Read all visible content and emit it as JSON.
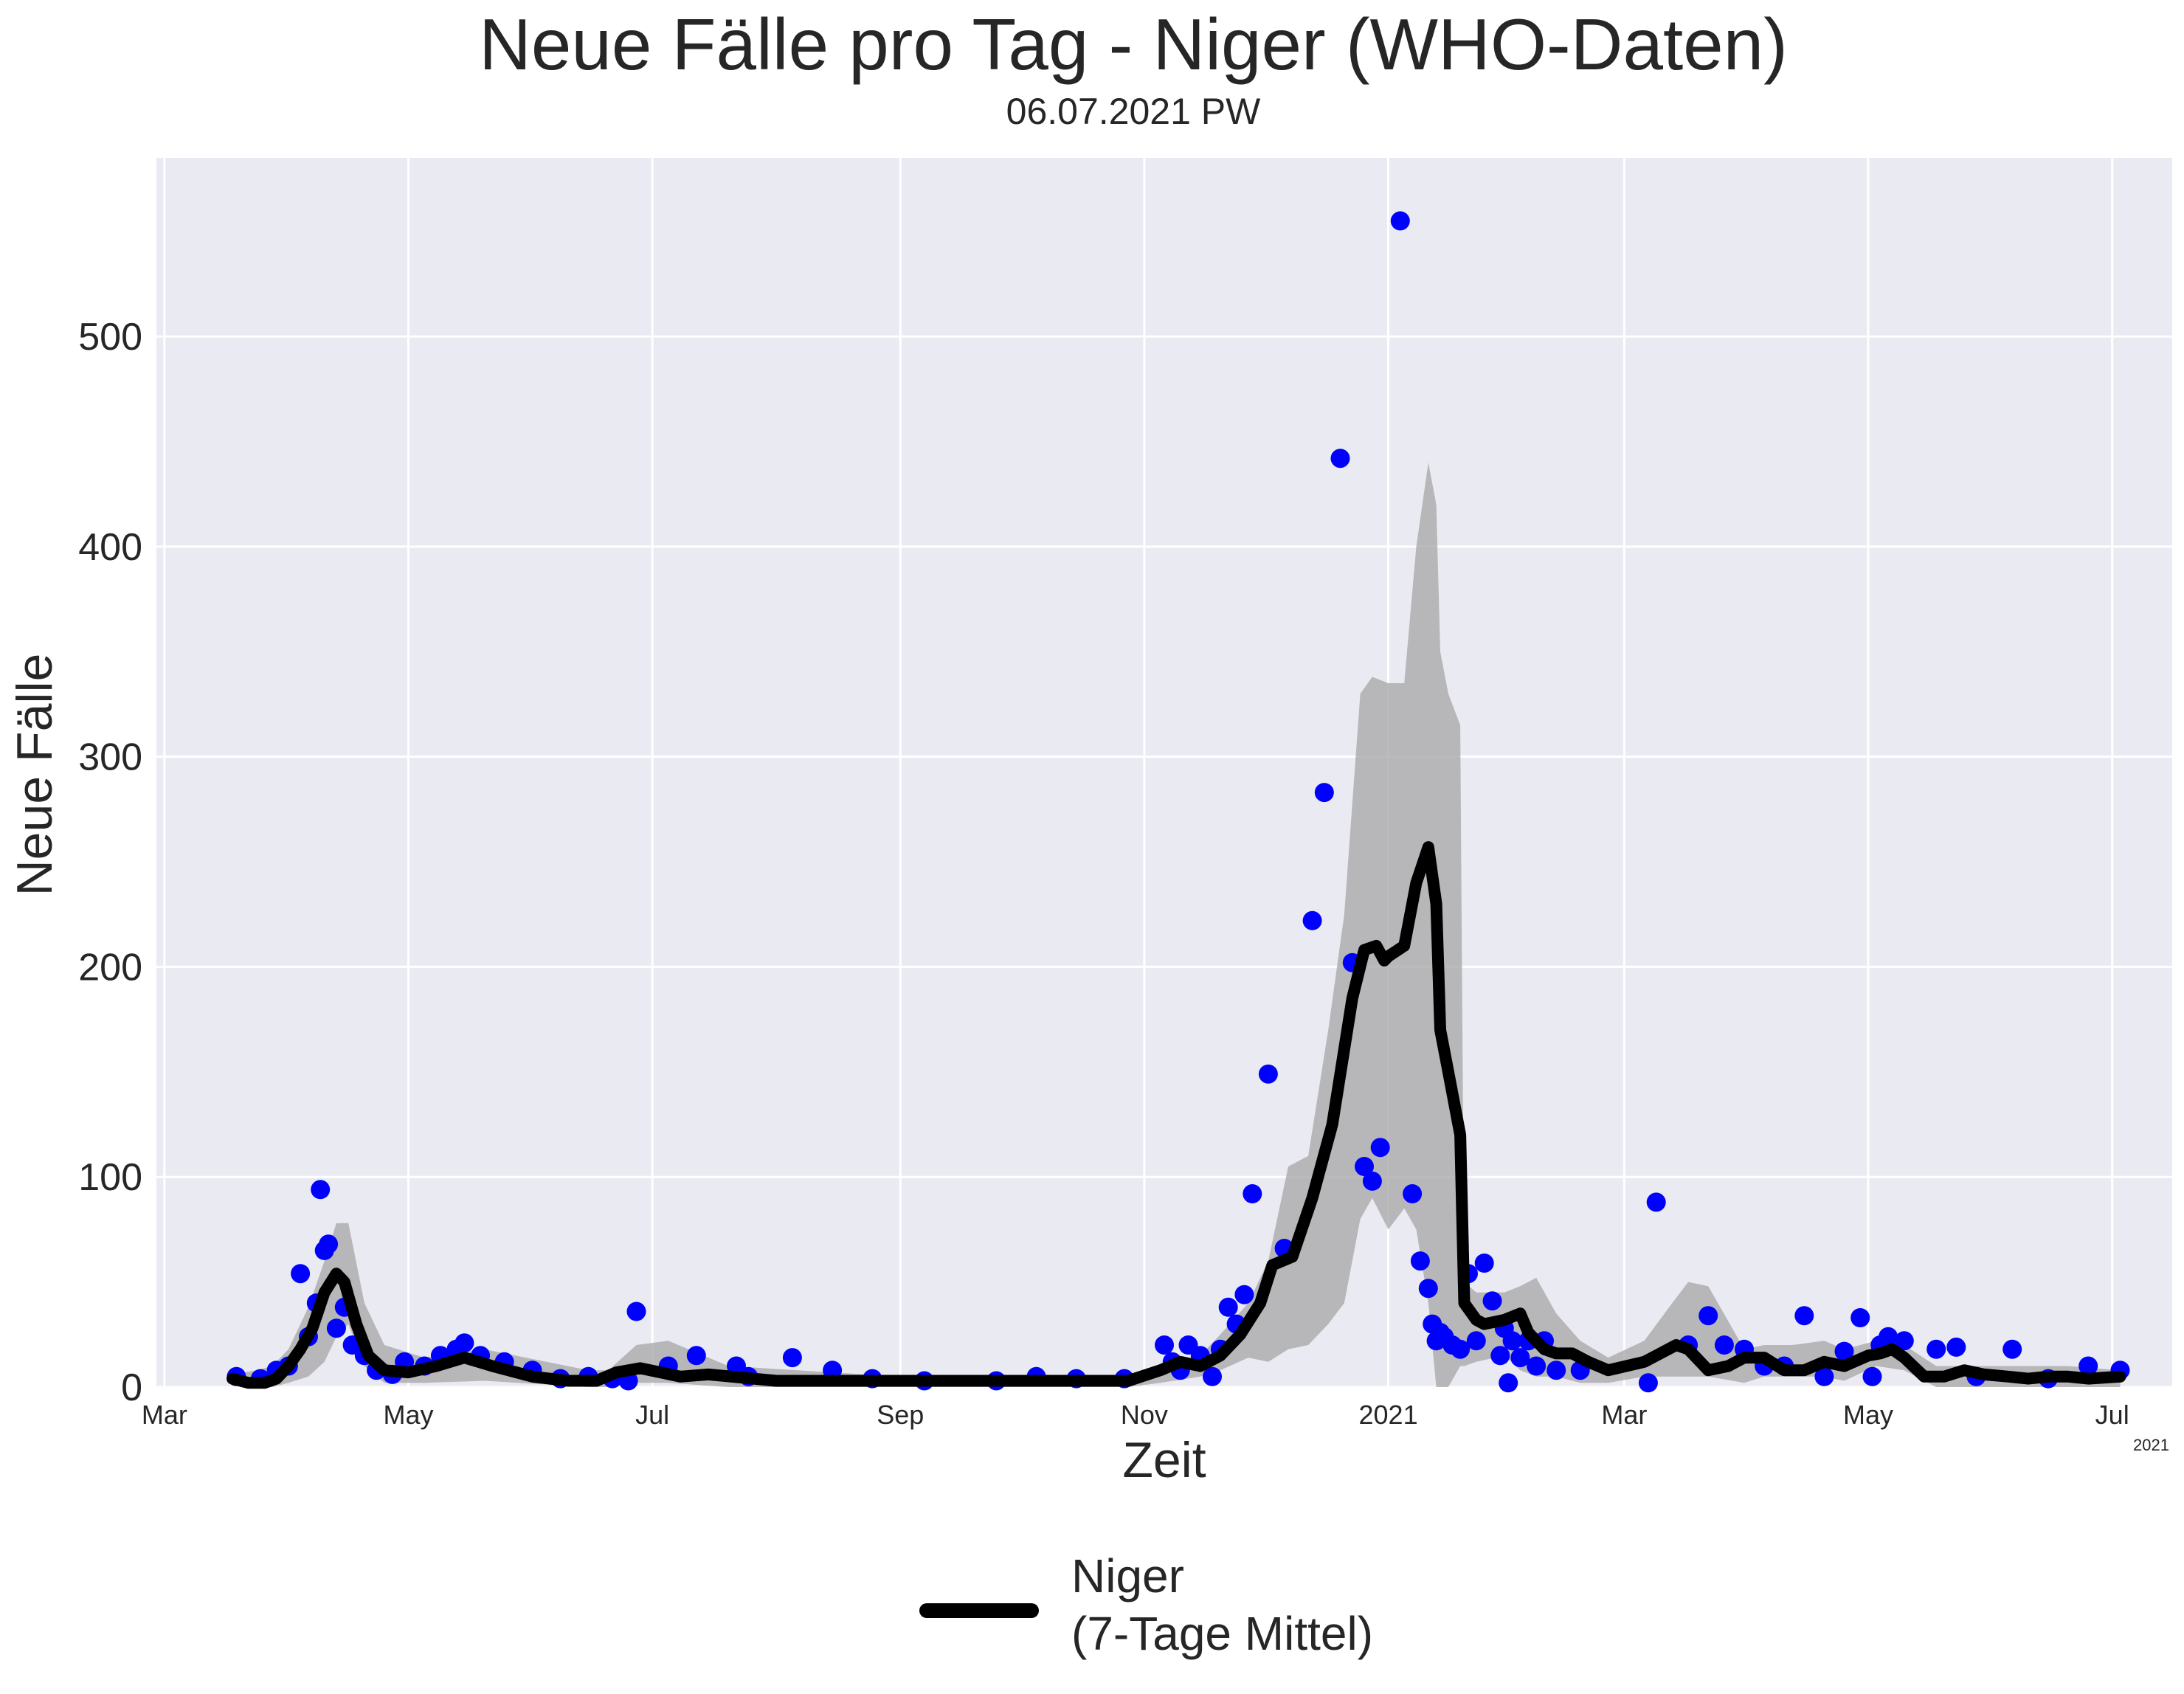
{
  "chart_data": {
    "type": "line",
    "title": "Neue Fälle pro Tag - Niger (WHO-Daten)",
    "subtitle": "06.07.2021 PW",
    "xlabel": "Zeit",
    "ylabel": "Neue Fälle",
    "x_offset_label": "2021",
    "x_range": [
      "2020-02-28",
      "2021-07-16"
    ],
    "ylim": [
      0,
      585
    ],
    "y_ticks": [
      0,
      100,
      200,
      300,
      400,
      500
    ],
    "x_ticks": [
      {
        "date": "2020-03-01",
        "label": "Mar"
      },
      {
        "date": "2020-05-01",
        "label": "May"
      },
      {
        "date": "2020-07-01",
        "label": "Jul"
      },
      {
        "date": "2020-09-01",
        "label": "Sep"
      },
      {
        "date": "2020-11-01",
        "label": "Nov"
      },
      {
        "date": "2021-01-01",
        "label": "2021"
      },
      {
        "date": "2021-03-01",
        "label": "Mar"
      },
      {
        "date": "2021-05-01",
        "label": "May"
      },
      {
        "date": "2021-07-01",
        "label": "Jul"
      }
    ],
    "grid": true,
    "legend_position": "bottom-center",
    "colors": {
      "background": "#eaeaf2",
      "grid": "#ffffff",
      "points": "#0000ff",
      "line": "#000000",
      "band": "#aaaaaa"
    },
    "series": [
      {
        "name": "Niger\n(7-Tage Mittel)",
        "type": "line",
        "x": [
          "2020-03-18",
          "2020-03-22",
          "2020-03-26",
          "2020-03-29",
          "2020-04-01",
          "2020-04-04",
          "2020-04-07",
          "2020-04-10",
          "2020-04-13",
          "2020-04-15",
          "2020-04-18",
          "2020-04-21",
          "2020-04-25",
          "2020-05-01",
          "2020-05-08",
          "2020-05-15",
          "2020-05-22",
          "2020-06-01",
          "2020-06-10",
          "2020-06-17",
          "2020-06-22",
          "2020-06-28",
          "2020-07-08",
          "2020-07-15",
          "2020-08-01",
          "2020-09-01",
          "2020-10-01",
          "2020-10-28",
          "2020-11-05",
          "2020-11-10",
          "2020-11-15",
          "2020-11-20",
          "2020-11-25",
          "2020-11-30",
          "2020-12-03",
          "2020-12-08",
          "2020-12-13",
          "2020-12-18",
          "2020-12-23",
          "2020-12-26",
          "2020-12-29",
          "2020-12-31",
          "2021-01-01",
          "2021-01-05",
          "2021-01-08",
          "2021-01-11",
          "2021-01-13",
          "2021-01-14",
          "2021-01-16",
          "2021-01-19",
          "2021-01-20",
          "2021-01-23",
          "2021-01-25",
          "2021-01-30",
          "2021-02-03",
          "2021-02-05",
          "2021-02-09",
          "2021-02-12",
          "2021-02-16",
          "2021-02-20",
          "2021-02-25",
          "2021-03-06",
          "2021-03-10",
          "2021-03-14",
          "2021-03-17",
          "2021-03-22",
          "2021-03-27",
          "2021-03-31",
          "2021-04-05",
          "2021-04-10",
          "2021-04-15",
          "2021-04-20",
          "2021-04-25",
          "2021-05-01",
          "2021-05-04",
          "2021-05-07",
          "2021-05-10",
          "2021-05-15",
          "2021-05-20",
          "2021-05-25",
          "2021-05-30",
          "2021-06-05",
          "2021-06-10",
          "2021-06-15",
          "2021-06-20",
          "2021-06-25",
          "2021-07-03"
        ],
        "values": [
          4,
          2,
          2,
          4,
          10,
          18,
          28,
          45,
          54,
          50,
          30,
          15,
          8,
          7,
          10,
          14,
          10,
          5,
          3,
          3,
          7,
          9,
          5,
          6,
          3,
          3,
          3,
          3,
          8,
          12,
          10,
          15,
          25,
          40,
          58,
          62,
          90,
          125,
          185,
          208,
          210,
          203,
          205,
          210,
          240,
          257,
          230,
          170,
          150,
          120,
          40,
          32,
          30,
          32,
          35,
          26,
          18,
          16,
          16,
          12,
          8,
          12,
          16,
          20,
          18,
          8,
          10,
          14,
          14,
          8,
          8,
          12,
          10,
          15,
          16,
          18,
          14,
          5,
          5,
          8,
          6,
          5,
          4,
          5,
          5,
          4,
          5
        ]
      },
      {
        "name": "",
        "type": "scatter",
        "x": [
          "2020-03-19",
          "2020-03-25",
          "2020-03-29",
          "2020-04-01",
          "2020-04-04",
          "2020-04-06",
          "2020-04-08",
          "2020-04-09",
          "2020-04-10",
          "2020-04-11",
          "2020-04-13",
          "2020-04-15",
          "2020-04-17",
          "2020-04-20",
          "2020-04-23",
          "2020-04-27",
          "2020-04-30",
          "2020-05-05",
          "2020-05-09",
          "2020-05-13",
          "2020-05-15",
          "2020-05-19",
          "2020-05-25",
          "2020-06-01",
          "2020-06-08",
          "2020-06-15",
          "2020-06-21",
          "2020-06-25",
          "2020-06-27",
          "2020-07-05",
          "2020-07-12",
          "2020-07-22",
          "2020-07-25",
          "2020-08-05",
          "2020-08-15",
          "2020-08-25",
          "2020-09-07",
          "2020-09-25",
          "2020-10-05",
          "2020-10-15",
          "2020-10-27",
          "2020-11-06",
          "2020-11-08",
          "2020-11-10",
          "2020-11-12",
          "2020-11-15",
          "2020-11-18",
          "2020-11-20",
          "2020-11-22",
          "2020-11-24",
          "2020-11-26",
          "2020-11-28",
          "2020-12-02",
          "2020-12-06",
          "2020-12-13",
          "2020-12-16",
          "2020-12-20",
          "2020-12-23",
          "2020-12-26",
          "2020-12-28",
          "2020-12-30",
          "2021-01-04",
          "2021-01-07",
          "2021-01-09",
          "2021-01-11",
          "2021-01-12",
          "2021-01-13",
          "2021-01-14",
          "2021-01-15",
          "2021-01-17",
          "2021-01-19",
          "2021-01-21",
          "2021-01-23",
          "2021-01-25",
          "2021-01-27",
          "2021-01-29",
          "2021-01-30",
          "2021-01-31",
          "2021-02-01",
          "2021-02-03",
          "2021-02-05",
          "2021-02-07",
          "2021-02-09",
          "2021-02-12",
          "2021-02-18",
          "2021-03-07",
          "2021-03-09",
          "2021-03-17",
          "2021-03-22",
          "2021-03-26",
          "2021-03-31",
          "2021-04-05",
          "2021-04-10",
          "2021-04-15",
          "2021-04-20",
          "2021-04-25",
          "2021-04-29",
          "2021-05-02",
          "2021-05-04",
          "2021-05-06",
          "2021-05-10",
          "2021-05-18",
          "2021-05-23",
          "2021-05-28",
          "2021-06-06",
          "2021-06-15",
          "2021-06-25",
          "2021-07-03"
        ],
        "values": [
          5,
          4,
          8,
          10,
          54,
          24,
          40,
          94,
          65,
          68,
          28,
          38,
          20,
          15,
          8,
          6,
          12,
          10,
          15,
          18,
          21,
          15,
          12,
          8,
          4,
          5,
          4,
          3,
          36,
          10,
          15,
          10,
          5,
          14,
          8,
          4,
          3,
          3,
          5,
          4,
          4,
          20,
          12,
          8,
          20,
          15,
          5,
          18,
          38,
          30,
          44,
          92,
          149,
          66,
          222,
          283,
          442,
          202,
          105,
          98,
          114,
          555,
          92,
          60,
          47,
          30,
          22,
          26,
          24,
          20,
          18,
          54,
          22,
          59,
          41,
          15,
          28,
          2,
          22,
          14,
          22,
          10,
          22,
          8,
          8,
          2,
          88,
          20,
          34,
          20,
          18,
          10,
          10,
          34,
          5,
          17,
          33,
          5,
          20,
          24,
          22,
          18,
          19,
          5,
          18,
          4,
          10,
          8
        ]
      }
    ],
    "band": {
      "name": "",
      "x": [
        "2020-03-18",
        "2020-03-24",
        "2020-03-28",
        "2020-04-01",
        "2020-04-06",
        "2020-04-10",
        "2020-04-13",
        "2020-04-16",
        "2020-04-20",
        "2020-04-25",
        "2020-05-05",
        "2020-05-20",
        "2020-06-15",
        "2020-06-20",
        "2020-06-27",
        "2020-07-05",
        "2020-07-20",
        "2020-09-01",
        "2020-10-28",
        "2020-11-05",
        "2020-11-15",
        "2020-11-20",
        "2020-11-27",
        "2020-12-02",
        "2020-12-07",
        "2020-12-12",
        "2020-12-17",
        "2020-12-21",
        "2020-12-25",
        "2020-12-28",
        "2021-01-01",
        "2021-01-05",
        "2021-01-08",
        "2021-01-11",
        "2021-01-13",
        "2021-01-14",
        "2021-01-16",
        "2021-01-19",
        "2021-01-20",
        "2021-01-23",
        "2021-01-30",
        "2021-02-03",
        "2021-02-07",
        "2021-02-12",
        "2021-02-18",
        "2021-02-25",
        "2021-03-06",
        "2021-03-13",
        "2021-03-17",
        "2021-03-22",
        "2021-03-31",
        "2021-04-05",
        "2021-04-12",
        "2021-04-20",
        "2021-04-25",
        "2021-05-03",
        "2021-05-10",
        "2021-05-18",
        "2021-05-25",
        "2021-06-05",
        "2021-06-20",
        "2021-07-03"
      ],
      "upper": [
        6,
        8,
        10,
        18,
        38,
        60,
        78,
        78,
        40,
        20,
        14,
        18,
        8,
        8,
        20,
        22,
        10,
        5,
        5,
        10,
        15,
        25,
        40,
        60,
        105,
        110,
        170,
        225,
        330,
        338,
        335,
        335,
        400,
        440,
        420,
        350,
        330,
        315,
        50,
        45,
        45,
        48,
        52,
        35,
        22,
        14,
        22,
        40,
        50,
        48,
        18,
        20,
        20,
        22,
        18,
        22,
        20,
        10,
        10,
        10,
        10,
        8
      ],
      "lower": [
        2,
        0,
        0,
        2,
        5,
        12,
        24,
        30,
        10,
        2,
        2,
        3,
        0,
        0,
        2,
        2,
        0,
        0,
        0,
        2,
        5,
        8,
        14,
        12,
        18,
        20,
        30,
        40,
        80,
        90,
        75,
        85,
        75,
        40,
        0,
        0,
        0,
        10,
        10,
        12,
        15,
        8,
        5,
        5,
        2,
        2,
        5,
        5,
        5,
        5,
        2,
        5,
        5,
        5,
        3,
        10,
        8,
        0,
        0,
        0,
        0,
        0
      ]
    }
  }
}
